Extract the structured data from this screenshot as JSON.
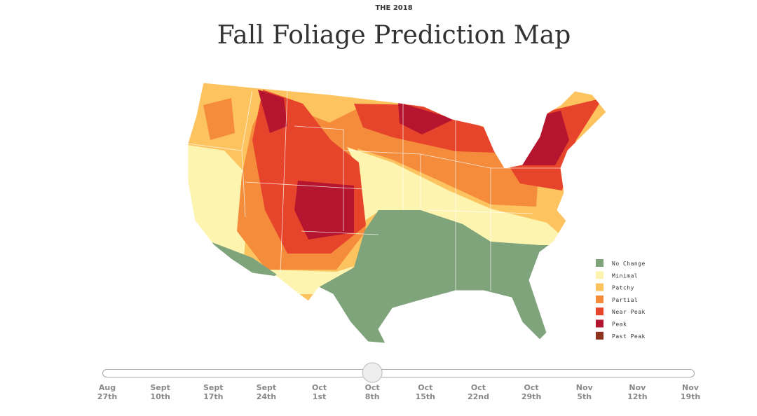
{
  "header": {
    "kicker": "THE 2018",
    "title": "Fall Foliage Prediction Map"
  },
  "legend": [
    {
      "label": "No Change",
      "color": "#7fa37a"
    },
    {
      "label": "Minimal",
      "color": "#fdf4b0"
    },
    {
      "label": "Patchy",
      "color": "#fcc35f"
    },
    {
      "label": "Partial",
      "color": "#f58c3c"
    },
    {
      "label": "Near Peak",
      "color": "#e7452b"
    },
    {
      "label": "Peak",
      "color": "#b5152e"
    },
    {
      "label": "Past Peak",
      "color": "#8c321f"
    }
  ],
  "slider": {
    "selected_index": 5,
    "stops": [
      {
        "month": "Aug",
        "day": "27th"
      },
      {
        "month": "Sept",
        "day": "10th"
      },
      {
        "month": "Sept",
        "day": "17th"
      },
      {
        "month": "Sept",
        "day": "24th"
      },
      {
        "month": "Oct",
        "day": "1st"
      },
      {
        "month": "Oct",
        "day": "8th"
      },
      {
        "month": "Oct",
        "day": "15th"
      },
      {
        "month": "Oct",
        "day": "22nd"
      },
      {
        "month": "Oct",
        "day": "29th"
      },
      {
        "month": "Nov",
        "day": "5th"
      },
      {
        "month": "Nov",
        "day": "12th"
      },
      {
        "month": "Nov",
        "day": "19th"
      }
    ]
  }
}
